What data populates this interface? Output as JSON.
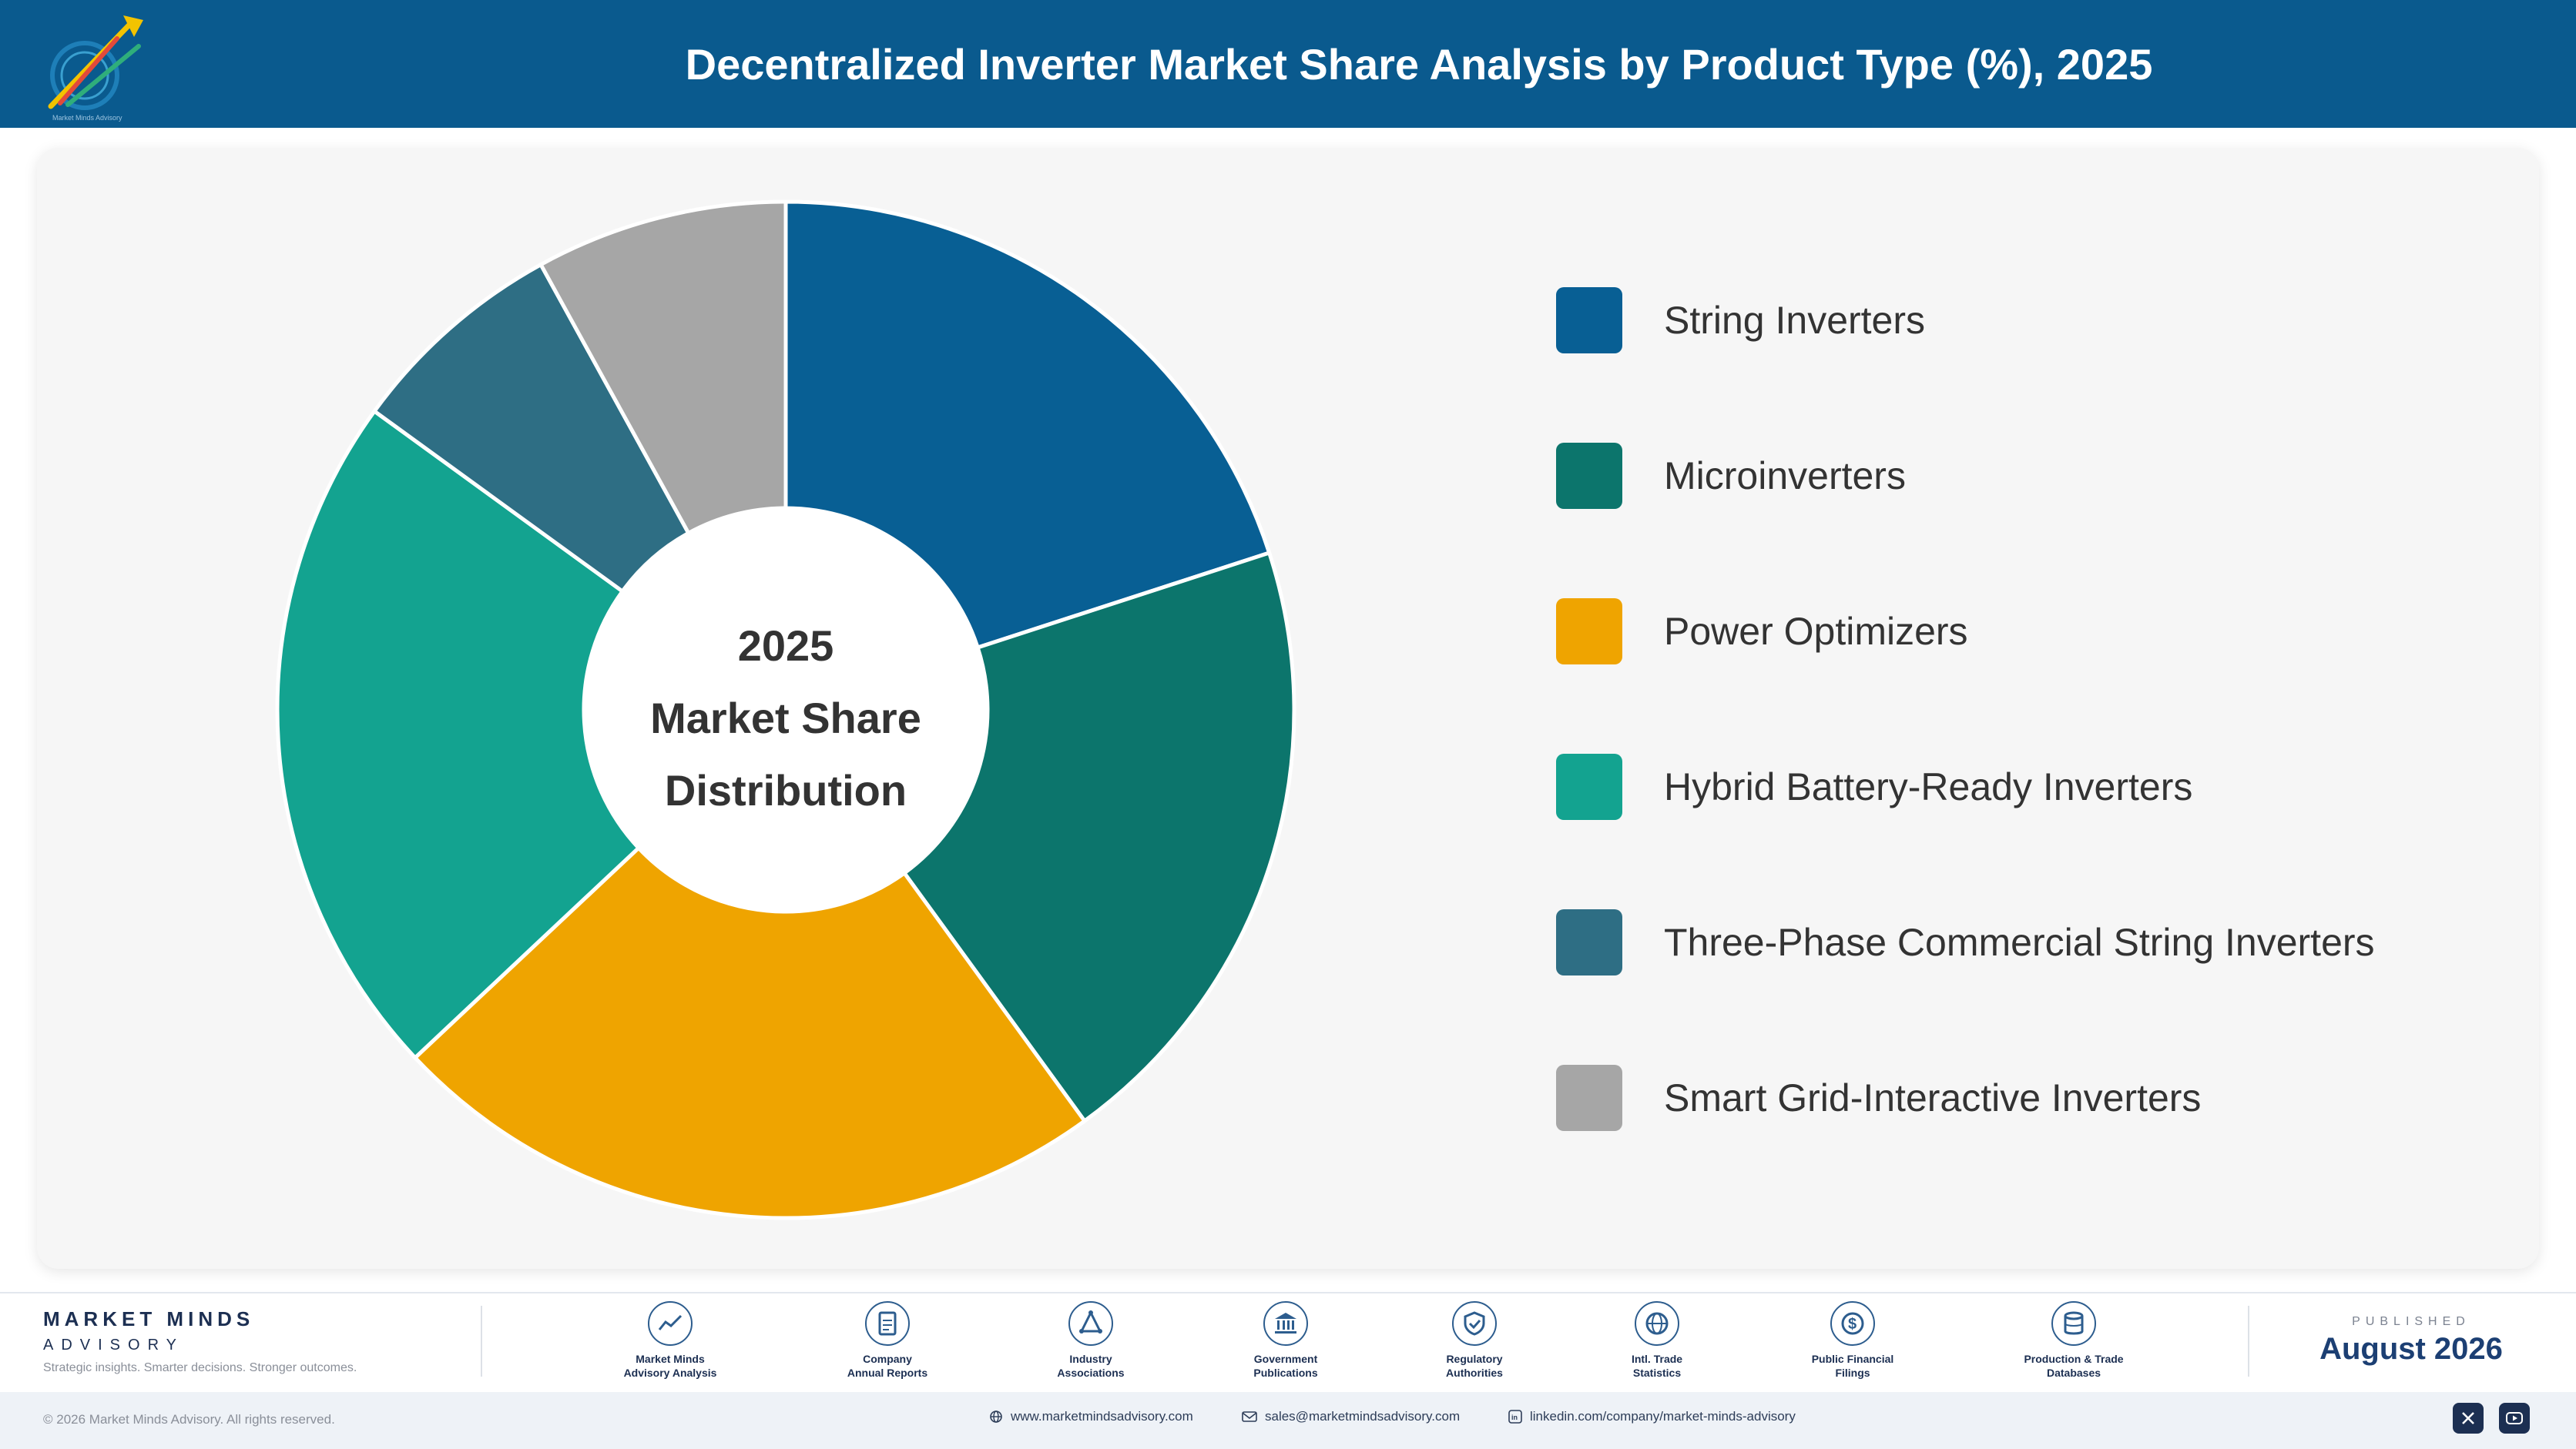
{
  "header": {
    "title": "Decentralized Inverter Market Share Analysis by Product Type (%), 2025"
  },
  "center_label": {
    "line1": "2025",
    "line2": "Market Share",
    "line3": "Distribution"
  },
  "chart_data": {
    "type": "pie",
    "style": "donut",
    "title": "Decentralized Inverter Market Share Analysis by Product Type (%), 2025",
    "categories": [
      "String Inverters",
      "Microinverters",
      "Power Optimizers",
      "Hybrid Battery-Ready Inverters",
      "Three-Phase Commercial String Inverters",
      "Smart Grid-Interactive Inverters"
    ],
    "values": [
      20,
      20,
      23,
      22,
      7,
      8
    ],
    "colors": [
      "#085f94",
      "#0c756c",
      "#efa400",
      "#13a390",
      "#2e6e84",
      "#a6a6a6"
    ],
    "legend": "right"
  },
  "footer": {
    "brand_name": "MARKET MINDS",
    "brand_sub": "ADVISORY",
    "tagline": "Strategic insights. Smarter decisions. Stronger outcomes.",
    "sources": [
      {
        "line1": "Market Minds",
        "line2": "Advisory Analysis",
        "icon": "trend-icon"
      },
      {
        "line1": "Company",
        "line2": "Annual Reports",
        "icon": "document-icon"
      },
      {
        "line1": "Industry",
        "line2": "Associations",
        "icon": "network-icon"
      },
      {
        "line1": "Government",
        "line2": "Publications",
        "icon": "government-building-icon"
      },
      {
        "line1": "Regulatory",
        "line2": "Authorities",
        "icon": "shield-check-icon"
      },
      {
        "line1": "Intl. Trade",
        "line2": "Statistics",
        "icon": "globe-icon"
      },
      {
        "line1": "Public Financial",
        "line2": "Filings",
        "icon": "dollar-coin-icon"
      },
      {
        "line1": "Production & Trade",
        "line2": "Databases",
        "icon": "database-icon"
      }
    ],
    "published_label": "PUBLISHED",
    "published_date": "August 2026",
    "copyright": "© 2026 Market Minds Advisory. All rights reserved.",
    "website": "www.marketmindsadvisory.com",
    "email": "sales@marketmindsadvisory.com",
    "linkedin": "linkedin.com/company/market-minds-advisory"
  }
}
